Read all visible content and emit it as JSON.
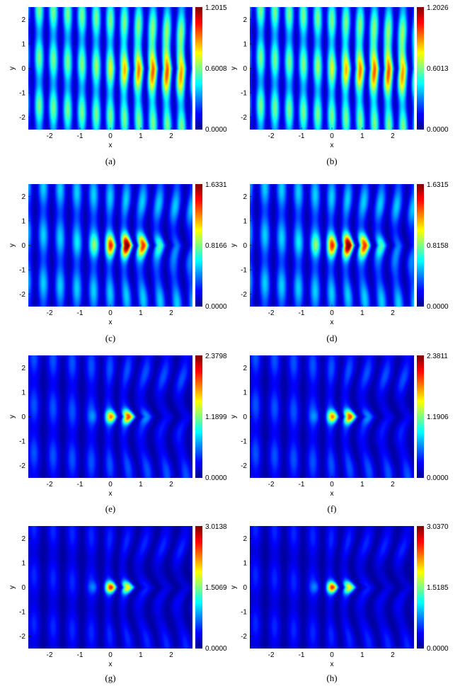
{
  "figure": {
    "colormap": [
      "#00008f",
      "#0000ff",
      "#007fff",
      "#00ffff",
      "#7fff7f",
      "#ffff00",
      "#ff7f00",
      "#ff0000",
      "#7f0000"
    ]
  },
  "chart_data": [
    {
      "label": "(a)",
      "type": "heatmap",
      "xlabel": "x",
      "ylabel": "y",
      "xlim": [
        -2.7,
        2.7
      ],
      "ylim": [
        -2.5,
        2.5
      ],
      "xticks": [
        "-2",
        "-1",
        "0",
        "1",
        "2"
      ],
      "xtick_values": [
        -2,
        -1,
        0,
        1,
        2
      ],
      "yticks": [
        "2",
        "1",
        "0",
        "-1",
        "-2"
      ],
      "ytick_values": [
        2,
        1,
        0,
        -1,
        -2
      ],
      "colorbar": {
        "max": "1.2015",
        "mid": "0.6008",
        "min": "0.0000",
        "max_value": 1.2015
      },
      "pattern": {
        "k": 6.7,
        "base_amplitude": 0.6,
        "focus_x": 1.8,
        "focus_sigma_x": 1.0,
        "focus_sigma_y": 0.7,
        "focus_gain": 1.0,
        "wedge": 0.25
      }
    },
    {
      "label": "(b)",
      "type": "heatmap",
      "xlabel": "x",
      "ylabel": "y",
      "xlim": [
        -2.7,
        2.7
      ],
      "ylim": [
        -2.5,
        2.5
      ],
      "xticks": [
        "-2",
        "-1",
        "0",
        "1",
        "2"
      ],
      "xtick_values": [
        -2,
        -1,
        0,
        1,
        2
      ],
      "yticks": [
        "2",
        "1",
        "0",
        "-1",
        "-2"
      ],
      "ytick_values": [
        2,
        1,
        0,
        -1,
        -2
      ],
      "colorbar": {
        "max": "1.2026",
        "mid": "0.6013",
        "min": "0.0000",
        "max_value": 1.2026
      },
      "pattern": {
        "k": 6.7,
        "base_amplitude": 0.6,
        "focus_x": 1.8,
        "focus_sigma_x": 1.0,
        "focus_sigma_y": 0.7,
        "focus_gain": 1.0,
        "wedge": 0.25
      }
    },
    {
      "label": "(c)",
      "type": "heatmap",
      "xlabel": "x",
      "ylabel": "y",
      "xlim": [
        -2.7,
        2.7
      ],
      "ylim": [
        -2.5,
        2.5
      ],
      "xticks": [
        "-2",
        "-1",
        "0",
        "1",
        "2"
      ],
      "xtick_values": [
        -2,
        -1,
        0,
        1,
        2
      ],
      "yticks": [
        "2",
        "1",
        "0",
        "-1",
        "-2"
      ],
      "ytick_values": [
        2,
        1,
        0,
        -1,
        -2
      ],
      "colorbar": {
        "max": "1.6331",
        "mid": "0.8166",
        "min": "0.0000",
        "max_value": 1.6331
      },
      "pattern": {
        "k": 5.7,
        "base_amplitude": 0.55,
        "focus_x": 0.6,
        "focus_sigma_x": 0.7,
        "focus_sigma_y": 0.3,
        "focus_gain": 2.2,
        "wedge": 0.7
      }
    },
    {
      "label": "(d)",
      "type": "heatmap",
      "xlabel": "x",
      "ylabel": "y",
      "xlim": [
        -2.7,
        2.7
      ],
      "ylim": [
        -2.5,
        2.5
      ],
      "xticks": [
        "-2",
        "-1",
        "0",
        "1",
        "2"
      ],
      "xtick_values": [
        -2,
        -1,
        0,
        1,
        2
      ],
      "yticks": [
        "2",
        "1",
        "0",
        "-1",
        "-2"
      ],
      "ytick_values": [
        2,
        1,
        0,
        -1,
        -2
      ],
      "colorbar": {
        "max": "1.6315",
        "mid": "0.8158",
        "min": "0.0000",
        "max_value": 1.6315
      },
      "pattern": {
        "k": 5.7,
        "base_amplitude": 0.55,
        "focus_x": 0.6,
        "focus_sigma_x": 0.7,
        "focus_sigma_y": 0.3,
        "focus_gain": 2.2,
        "wedge": 0.7
      }
    },
    {
      "label": "(e)",
      "type": "heatmap",
      "xlabel": "x",
      "ylabel": "y",
      "xlim": [
        -2.7,
        2.7
      ],
      "ylim": [
        -2.5,
        2.5
      ],
      "xticks": [
        "-2",
        "-1",
        "0",
        "1",
        "2"
      ],
      "xtick_values": [
        -2,
        -1,
        0,
        1,
        2
      ],
      "yticks": [
        "2",
        "1",
        "0",
        "-1",
        "-2"
      ],
      "ytick_values": [
        2,
        1,
        0,
        -1,
        -2
      ],
      "colorbar": {
        "max": "2.3798",
        "mid": "1.1899",
        "min": "0.0000",
        "max_value": 2.3798
      },
      "pattern": {
        "k": 5.0,
        "base_amplitude": 0.5,
        "focus_x": 0.35,
        "focus_sigma_x": 0.45,
        "focus_sigma_y": 0.18,
        "focus_gain": 3.4,
        "wedge": 1.2
      }
    },
    {
      "label": "(f)",
      "type": "heatmap",
      "xlabel": "x",
      "ylabel": "y",
      "xlim": [
        -2.7,
        2.7
      ],
      "ylim": [
        -2.5,
        2.5
      ],
      "xticks": [
        "-2",
        "-1",
        "0",
        "1",
        "2"
      ],
      "xtick_values": [
        -2,
        -1,
        0,
        1,
        2
      ],
      "yticks": [
        "2",
        "1",
        "0",
        "-1",
        "-2"
      ],
      "ytick_values": [
        2,
        1,
        0,
        -1,
        -2
      ],
      "colorbar": {
        "max": "2.3811",
        "mid": "1.1906",
        "min": "0.0000",
        "max_value": 2.3811
      },
      "pattern": {
        "k": 5.0,
        "base_amplitude": 0.5,
        "focus_x": 0.35,
        "focus_sigma_x": 0.45,
        "focus_sigma_y": 0.18,
        "focus_gain": 3.4,
        "wedge": 1.2
      }
    },
    {
      "label": "(g)",
      "type": "heatmap",
      "xlabel": "x",
      "ylabel": "y",
      "xlim": [
        -2.7,
        2.7
      ],
      "ylim": [
        -2.5,
        2.5
      ],
      "xticks": [
        "-2",
        "-1",
        "0",
        "1",
        "2"
      ],
      "xtick_values": [
        -2,
        -1,
        0,
        1,
        2
      ],
      "yticks": [
        "2",
        "1",
        "0",
        "-1",
        "-2"
      ],
      "ytick_values": [
        2,
        1,
        0,
        -1,
        -2
      ],
      "colorbar": {
        "max": "3.0138",
        "mid": "1.5069",
        "min": "0.0000",
        "max_value": 3.0138
      },
      "pattern": {
        "k": 5.0,
        "base_amplitude": 0.5,
        "focus_x": 0.2,
        "focus_sigma_x": 0.4,
        "focus_sigma_y": 0.16,
        "focus_gain": 4.6,
        "wedge": 1.5
      }
    },
    {
      "label": "(h)",
      "type": "heatmap",
      "xlabel": "x",
      "ylabel": "y",
      "xlim": [
        -2.7,
        2.7
      ],
      "ylim": [
        -2.5,
        2.5
      ],
      "xticks": [
        "-2",
        "-1",
        "0",
        "1",
        "2"
      ],
      "xtick_values": [
        -2,
        -1,
        0,
        1,
        2
      ],
      "yticks": [
        "2",
        "1",
        "0",
        "-1",
        "-2"
      ],
      "ytick_values": [
        2,
        1,
        0,
        -1,
        -2
      ],
      "colorbar": {
        "max": "3.0370",
        "mid": "1.5185",
        "min": "0.0000",
        "max_value": 3.037
      },
      "pattern": {
        "k": 5.0,
        "base_amplitude": 0.5,
        "focus_x": 0.2,
        "focus_sigma_x": 0.4,
        "focus_sigma_y": 0.16,
        "focus_gain": 4.6,
        "wedge": 1.5
      }
    }
  ]
}
